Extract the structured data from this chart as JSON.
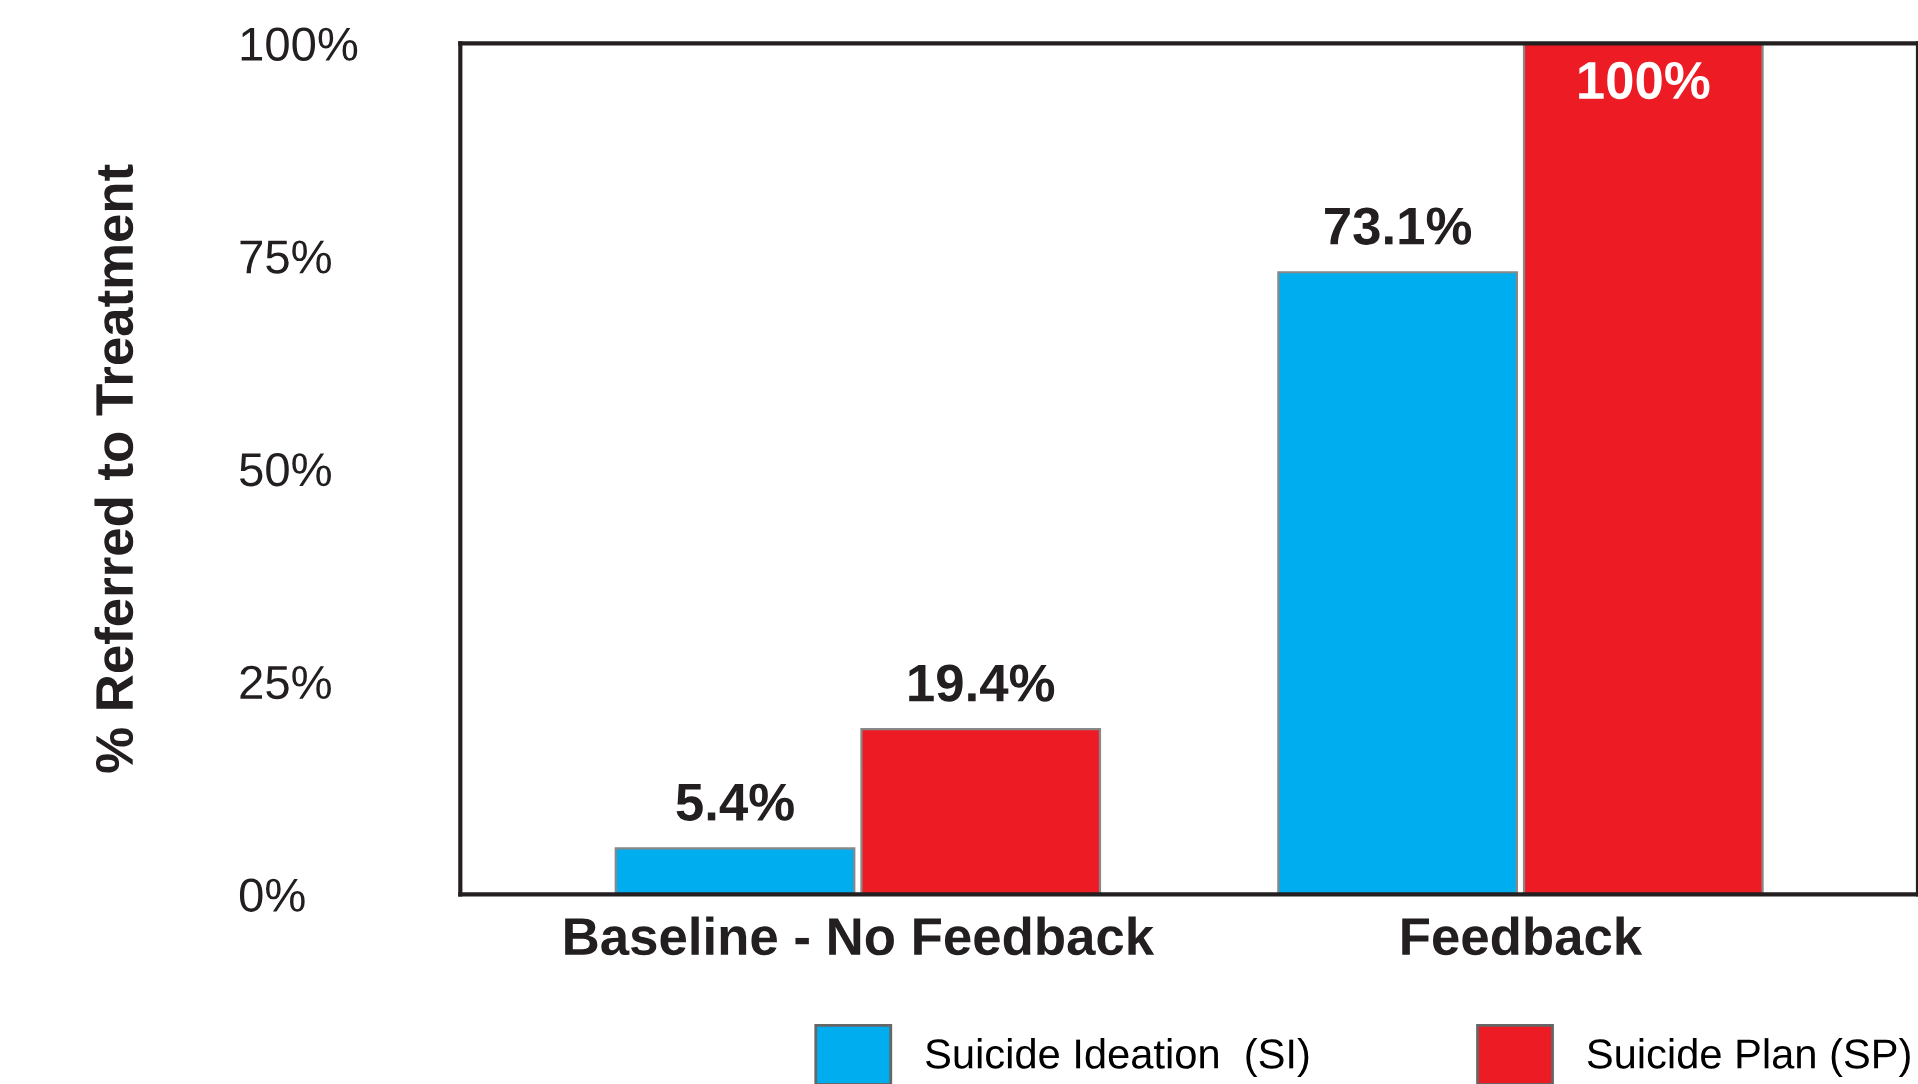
{
  "chart_data": {
    "type": "bar",
    "ylabel": "% Referred to Treatment",
    "categories": [
      "Baseline - No Feedback",
      "Feedback"
    ],
    "series": [
      {
        "name": "Suicide Ideation  (SI)",
        "color": "#00aeef",
        "values": [
          5.4,
          73.1
        ],
        "value_labels": [
          "5.4%",
          "73.1%"
        ]
      },
      {
        "name": "Suicide Plan (SP)",
        "color": "#ed1c24",
        "values": [
          19.4,
          100
        ],
        "value_labels": [
          "19.4%",
          "100%"
        ]
      }
    ],
    "ylim": [
      0,
      100
    ],
    "yticks": [
      {
        "value": 0,
        "label": "0%"
      },
      {
        "value": 25,
        "label": "25%"
      },
      {
        "value": 50,
        "label": "50%"
      },
      {
        "value": 75,
        "label": "75%"
      },
      {
        "value": 100,
        "label": "100%"
      }
    ],
    "grid": false,
    "legend": "bottom"
  }
}
